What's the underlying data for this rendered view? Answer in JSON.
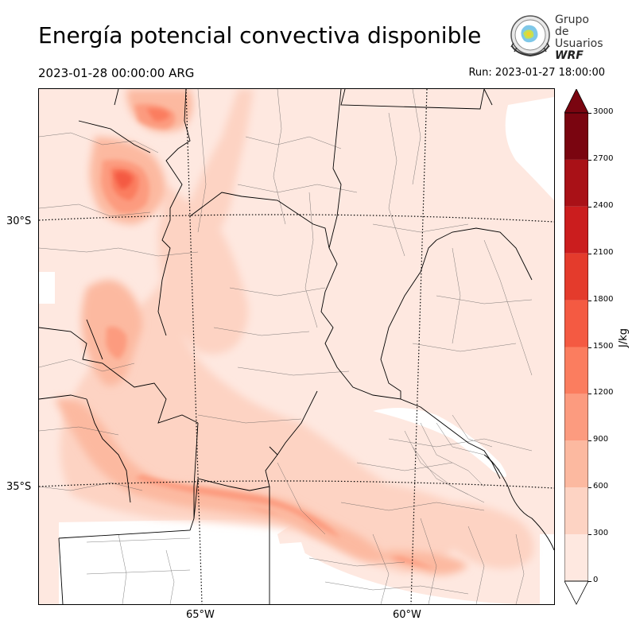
{
  "header": {
    "title": "Energía potencial convectiva disponible",
    "valid_time": "2023-01-28 00:00:00 ARG",
    "run": "Run: 2023-01-27 18:00:00"
  },
  "logo": {
    "line1": "Grupo de",
    "line2": "Usuarios",
    "line3": "WRF"
  },
  "map": {
    "lat_labels": [
      "30°S",
      "35°S"
    ],
    "lon_labels": [
      "65°W",
      "60°W"
    ]
  },
  "colorbar": {
    "unit": "J/kg",
    "ticks": [
      "0",
      "300",
      "600",
      "900",
      "1200",
      "1500",
      "1800",
      "2100",
      "2400",
      "2700",
      "3000"
    ],
    "colors": [
      "#fee8e0",
      "#fdd3c3",
      "#fcb9a0",
      "#fc9b7f",
      "#fb7d5f",
      "#f45a42",
      "#e43b2c",
      "#cb1d1e",
      "#a91117",
      "#7a0510"
    ]
  }
}
